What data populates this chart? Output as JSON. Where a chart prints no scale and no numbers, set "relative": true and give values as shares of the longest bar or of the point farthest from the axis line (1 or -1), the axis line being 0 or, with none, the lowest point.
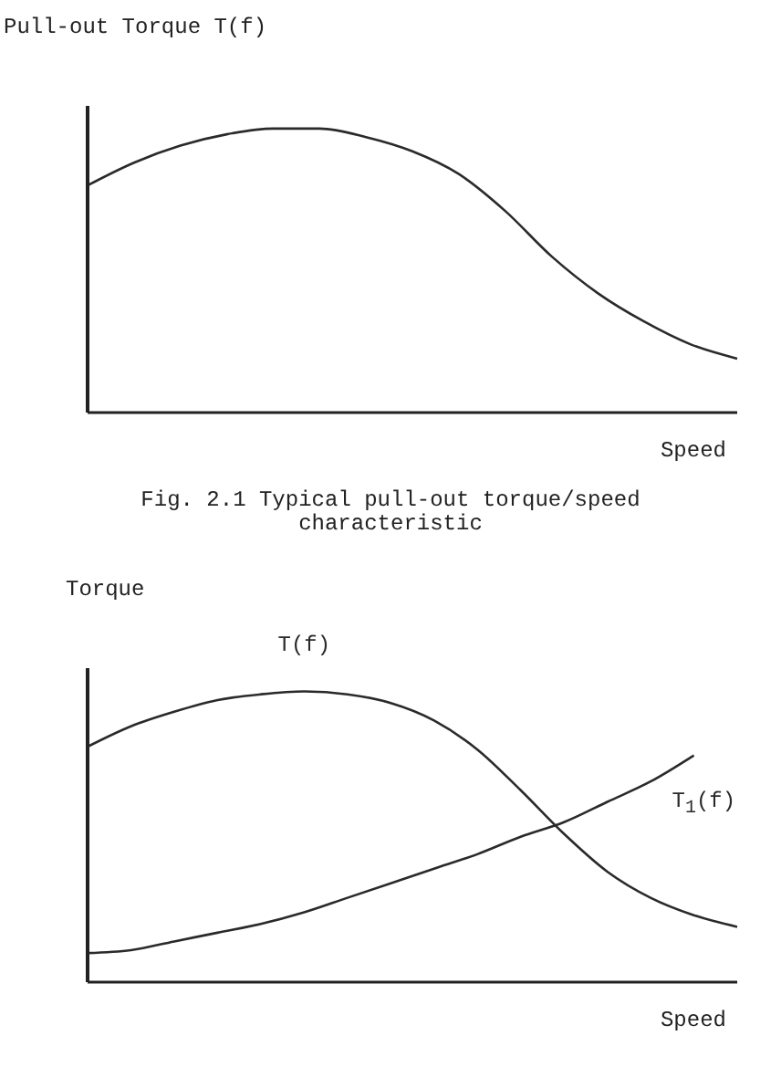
{
  "chart_data": [
    {
      "type": "line",
      "relative": true,
      "ylabel": "Pull-out Torque T(f)",
      "xlabel": "Speed",
      "annotations": [
        "Fig. 2.1 Typical pull-out torque/speed characteristic"
      ],
      "categories": [
        null,
        null,
        null,
        null,
        null,
        null,
        null,
        null,
        null,
        null,
        null,
        null,
        null,
        null,
        null
      ],
      "series": [
        {
          "color": "#2a2a2a",
          "values": [
            0.8,
            0.88,
            0.94,
            0.98,
            1.0,
            1.0,
            0.97,
            0.92,
            0.84,
            0.71,
            0.55,
            0.42,
            0.32,
            0.24,
            0.19
          ]
        }
      ],
      "marker": "none",
      "grid": false,
      "legend": false
    },
    {
      "type": "line",
      "relative": true,
      "ylabel": "Torque",
      "xlabel": "Speed",
      "categories": [
        null,
        null,
        null,
        null,
        null,
        null,
        null,
        null,
        null,
        null,
        null,
        null,
        null,
        null,
        null,
        null
      ],
      "series": [
        {
          "name": "T(f)",
          "color": "#2a2a2a",
          "values": [
            0.81,
            0.88,
            0.93,
            0.97,
            0.99,
            1.0,
            0.99,
            0.96,
            0.9,
            0.8,
            0.66,
            0.51,
            0.38,
            0.29,
            0.23,
            0.19
          ]
        },
        {
          "name": "T$_{1}$(f)",
          "color": "#2a2a2a",
          "values": [
            0.1,
            0.11,
            0.14,
            0.17,
            0.2,
            0.24,
            0.29,
            0.34,
            0.39,
            0.44,
            0.5,
            0.55,
            0.62,
            0.69,
            0.78,
            null
          ]
        }
      ],
      "marker": "none",
      "grid": false,
      "legend": false
    }
  ]
}
